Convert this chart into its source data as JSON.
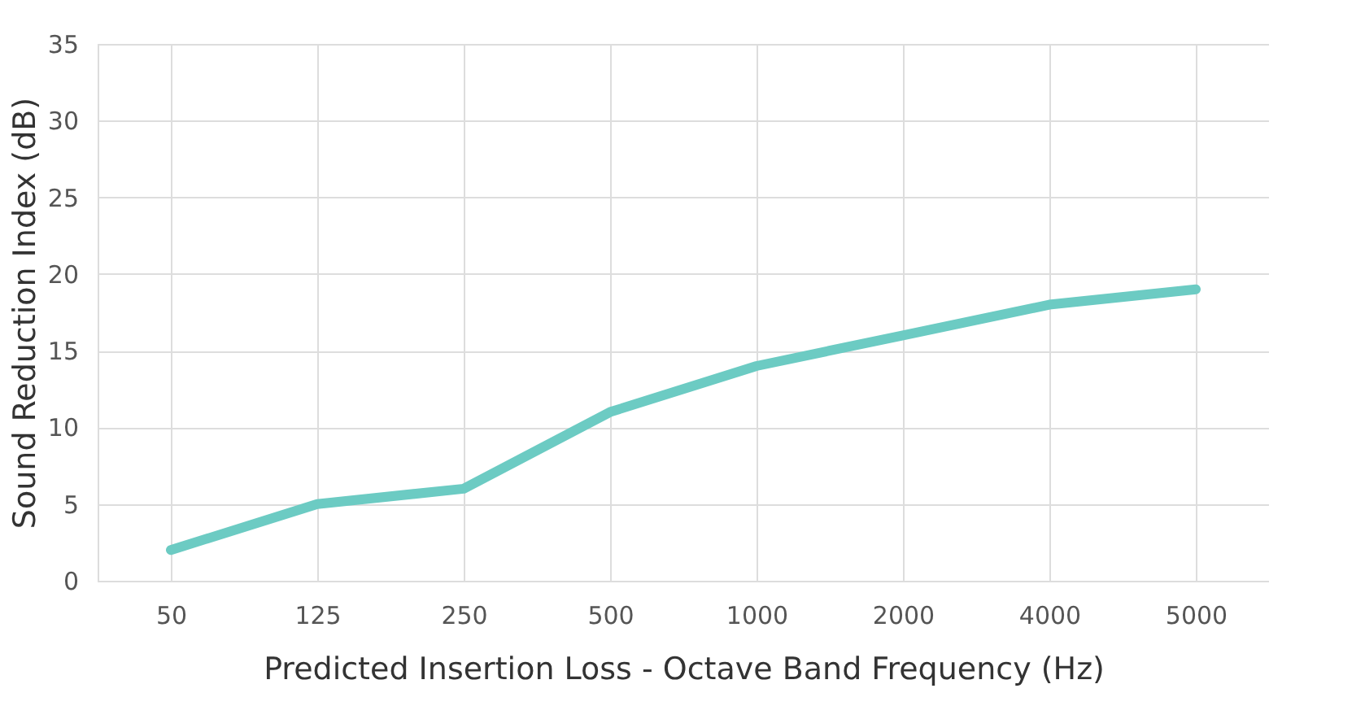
{
  "chart_data": {
    "type": "line",
    "xlabel": "Predicted Insertion Loss - Octave Band Frequency (Hz)",
    "ylabel": "Sound Reduction Index (dB)",
    "categories": [
      "50",
      "125",
      "250",
      "500",
      "1000",
      "2000",
      "4000",
      "5000"
    ],
    "series": [
      {
        "color": "#6ccbc3",
        "values": [
          2,
          5,
          6,
          11,
          14,
          16,
          18,
          19
        ]
      }
    ],
    "ylim": [
      0,
      35
    ],
    "yticks": [
      0,
      5,
      10,
      15,
      20,
      25,
      30,
      35
    ],
    "grid": true,
    "marker": "none",
    "line_style": "solid"
  }
}
